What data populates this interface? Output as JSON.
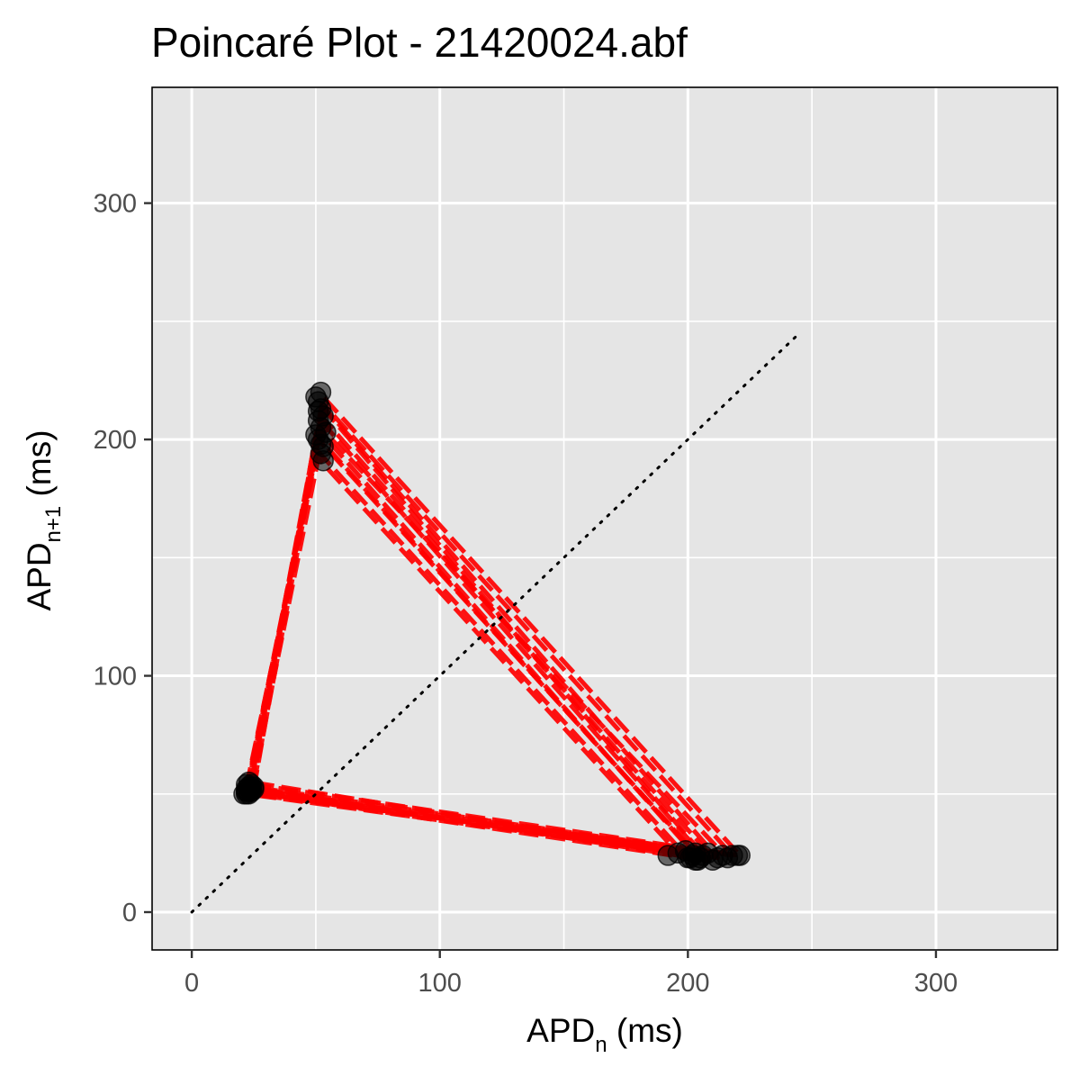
{
  "chart_data": {
    "type": "scatter",
    "title": "Poincaré Plot - 21420024.abf",
    "xlabel": {
      "base": "APD",
      "sub": "n",
      "rest": " (ms)"
    },
    "ylabel": {
      "base": "APD",
      "sub": "n+1",
      "rest": " (ms)"
    },
    "xlim": [
      -16,
      349
    ],
    "ylim": [
      -16,
      349
    ],
    "x_ticks": [
      0,
      100,
      200,
      300
    ],
    "y_ticks": [
      0,
      100,
      200,
      300
    ],
    "x_tick_labels": [
      "0",
      "100",
      "200",
      "300"
    ],
    "y_tick_labels": [
      "0",
      "100",
      "200",
      "300"
    ],
    "grid": true,
    "identity_line": {
      "x": [
        0,
        245
      ],
      "y": [
        0,
        245
      ],
      "style": "dotted",
      "color": "#000000"
    },
    "points": {
      "color": "#000000",
      "alpha": 0.55,
      "x": [
        22,
        23,
        24,
        25,
        22,
        23,
        24,
        21,
        22,
        23,
        24,
        25,
        22,
        23,
        24,
        50,
        51,
        52,
        53,
        51,
        52,
        54,
        50,
        51,
        52,
        53,
        52,
        53,
        51,
        52,
        192,
        196,
        199,
        201,
        202,
        203,
        204,
        205,
        206,
        208,
        210,
        212,
        214,
        216,
        218,
        220,
        221,
        200,
        203
      ],
      "y": [
        50,
        51,
        52,
        53,
        54,
        55,
        51,
        50,
        52,
        53,
        54,
        52,
        51,
        50,
        53,
        218,
        216,
        213,
        210,
        208,
        205,
        203,
        202,
        200,
        198,
        197,
        194,
        191,
        212,
        220,
        24,
        25,
        26,
        23,
        24,
        25,
        22,
        23,
        24,
        25,
        22,
        23,
        24,
        23,
        24,
        24,
        24,
        23,
        22
      ]
    },
    "path_cycles": [
      {
        "a": [
          22,
          50
        ],
        "b": [
          51,
          200
        ],
        "c": [
          204,
          24
        ]
      },
      {
        "a": [
          23,
          52
        ],
        "b": [
          52,
          210
        ],
        "c": [
          210,
          23
        ]
      },
      {
        "a": [
          24,
          53
        ],
        "b": [
          53,
          215
        ],
        "c": [
          218,
          24
        ]
      },
      {
        "a": [
          22,
          51
        ],
        "b": [
          50,
          196
        ],
        "c": [
          200,
          23
        ]
      },
      {
        "a": [
          25,
          54
        ],
        "b": [
          52,
          205
        ],
        "c": [
          214,
          25
        ]
      },
      {
        "a": [
          23,
          50
        ],
        "b": [
          53,
          218
        ],
        "c": [
          221,
          24
        ]
      },
      {
        "a": [
          24,
          52
        ],
        "b": [
          51,
          192
        ],
        "c": [
          196,
          25
        ]
      },
      {
        "a": [
          22,
          53
        ],
        "b": [
          54,
          212
        ],
        "c": [
          208,
          22
        ]
      },
      {
        "a": [
          23,
          51
        ],
        "b": [
          52,
          208
        ],
        "c": [
          206,
          24
        ]
      },
      {
        "a": [
          25,
          52
        ],
        "b": [
          50,
          202
        ],
        "c": [
          202,
          26
        ]
      },
      {
        "a": [
          24,
          55
        ],
        "b": [
          53,
          214
        ],
        "c": [
          212,
          23
        ]
      },
      {
        "a": [
          22,
          52
        ],
        "b": [
          52,
          203
        ],
        "c": [
          203,
          24
        ]
      }
    ],
    "path_style": {
      "color": "#ff0000",
      "dash": true,
      "opacity": 0.92
    }
  }
}
